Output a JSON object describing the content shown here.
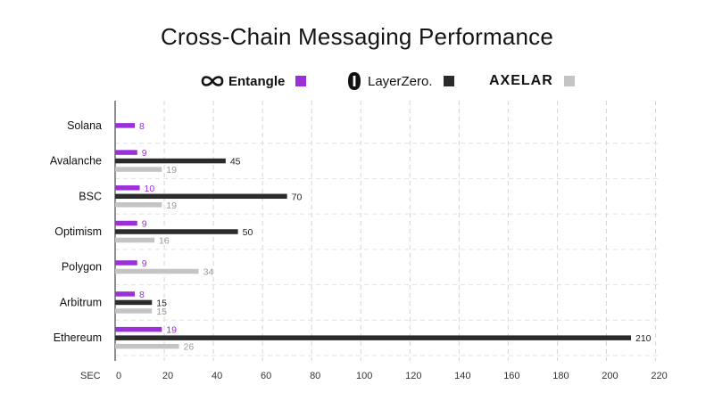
{
  "chart_data": {
    "type": "bar",
    "orientation": "horizontal",
    "title": "Cross-Chain Messaging Performance",
    "xlabel": "SEC",
    "xlim": [
      0,
      220
    ],
    "xticks": [
      0,
      20,
      40,
      60,
      80,
      100,
      120,
      140,
      160,
      180,
      200,
      220
    ],
    "grid": true,
    "legend_position": "top-center",
    "categories": [
      "Solana",
      "Avalanche",
      "BSC",
      "Optimism",
      "Polygon",
      "Arbitrum",
      "Ethereum"
    ],
    "series": [
      {
        "name": "Entangle",
        "color": "#9b30d9",
        "label_color": "#9b30d9",
        "values": [
          8,
          9,
          10,
          9,
          9,
          8,
          19
        ]
      },
      {
        "name": "LayerZero.",
        "color": "#2b2b2b",
        "label_color": "#222222",
        "values": [
          null,
          45,
          70,
          50,
          null,
          15,
          210
        ]
      },
      {
        "name": "AXELAR",
        "color": "#c4c4c4",
        "label_color": "#999999",
        "values": [
          null,
          19,
          19,
          16,
          34,
          15,
          26
        ]
      }
    ]
  }
}
